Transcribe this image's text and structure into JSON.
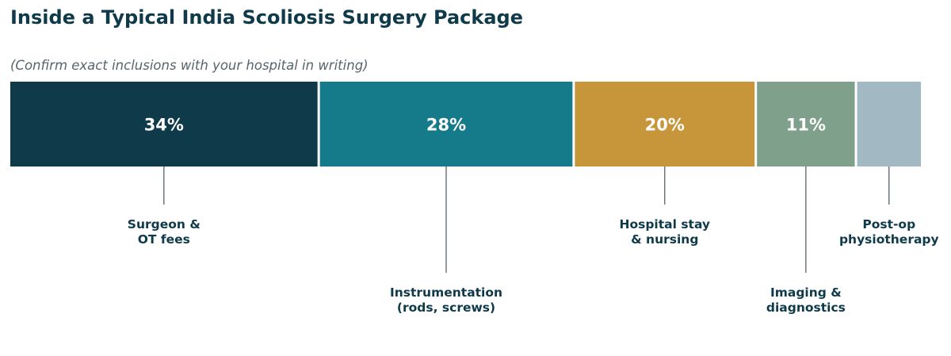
{
  "title": "Inside a Typical India Scoliosis Surgery Package",
  "subtitle": "(Confirm exact inclusions with your hospital in writing)",
  "chart_data": {
    "type": "bar",
    "orientation": "stacked-horizontal",
    "unit": "%",
    "categories": [
      [
        "Surgeon &",
        "OT fees"
      ],
      [
        "Instrumentation",
        "(rods, screws)"
      ],
      [
        "Hospital stay",
        "& nursing"
      ],
      [
        "Imaging &",
        "diagnostics"
      ],
      [
        "Post-op",
        "physiotherapy"
      ]
    ],
    "values": [
      34,
      28,
      20,
      11,
      7
    ],
    "value_labels": [
      "34%",
      "28%",
      "20%",
      "11%",
      ""
    ],
    "colors": [
      "#0f3a4a",
      "#157a8a",
      "#c8963a",
      "#7fa08a",
      "#a2b8c2"
    ],
    "label_rows": [
      "near",
      "far",
      "near",
      "far",
      "near"
    ],
    "legend": "none",
    "grid": false
  }
}
